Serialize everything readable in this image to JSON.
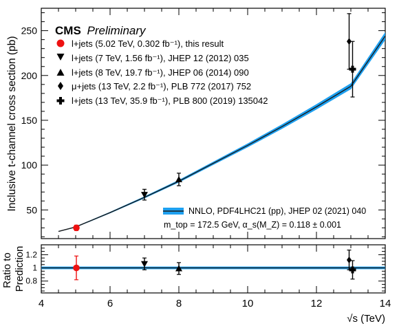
{
  "header": {
    "brand": "CMS",
    "status": "Preliminary"
  },
  "legend": {
    "entries": [
      {
        "label": "l+jets (5.02 TeV, 0.302 fb⁻¹), this result",
        "marker": "circle",
        "color": "#ee1111"
      },
      {
        "label": "l+jets (7 TeV, 1.56 fb⁻¹), JHEP 12 (2012) 035",
        "marker": "triangle-down",
        "color": "#000000"
      },
      {
        "label": "l+jets (8 TeV, 19.7 fb⁻¹), JHEP 06 (2014) 090",
        "marker": "triangle-up",
        "color": "#000000"
      },
      {
        "label": "μ+jets (13 TeV, 2.2 fb⁻¹), PLB 772 (2017) 752",
        "marker": "diamond",
        "color": "#000000"
      },
      {
        "label": "l+jets (13 TeV, 35.9 fb⁻¹), PLB 800 (2019) 135042",
        "marker": "cross",
        "color": "#000000"
      }
    ],
    "band_label": "NNLO, PDF4LHC21 (pp), JHEP 02 (2021) 040",
    "params_label": "m_top = 172.5 GeV, α_s(M_Z) = 0.118 ± 0.001"
  },
  "colors": {
    "band": "#1ea0f0",
    "line": "#1a1a1a",
    "signal": "#ee1111"
  },
  "chart_data": {
    "type": "scatter",
    "xlabel": "√s (TeV)",
    "ylabel_top": "Inclusive t-channel cross section (pb)",
    "ylabel_bottom": "Ratio to Prediction",
    "xlim": [
      4,
      14
    ],
    "ylim_top": [
      18,
      275
    ],
    "ylim_bottom": [
      0.62,
      1.35
    ],
    "xticks": [
      4,
      6,
      8,
      10,
      12,
      14
    ],
    "yticks_top": [
      50,
      100,
      150,
      200,
      250
    ],
    "yticks_bottom": [
      0.8,
      1,
      1.2
    ],
    "prediction": {
      "x": [
        4.5,
        5,
        6,
        7,
        8,
        9,
        10,
        11,
        12,
        13,
        14
      ],
      "y": [
        26,
        31,
        47,
        64,
        82,
        102,
        122,
        143,
        165,
        188,
        244
      ],
      "band_halfwidth_rel": 0.018
    },
    "measurements": [
      {
        "name": "l+jets (5.02 TeV)",
        "x": 5.02,
        "y": 30,
        "err": 3,
        "ratio": 1.0,
        "ratio_err": 0.18
      },
      {
        "name": "l+jets (7 TeV)",
        "x": 7.0,
        "y": 67,
        "err": 6,
        "ratio": 1.06,
        "ratio_err": 0.09
      },
      {
        "name": "l+jets (8 TeV)",
        "x": 8.0,
        "y": 84,
        "err": 7,
        "ratio": 0.99,
        "ratio_err": 0.09
      },
      {
        "name": "μ+jets (13 TeV, 2.2 fb⁻¹)",
        "x": 12.95,
        "y": 238,
        "err": 31,
        "ratio": 1.12,
        "ratio_err": 0.15
      },
      {
        "name": "l+jets (13 TeV, 35.9 fb⁻¹)",
        "x": 13.05,
        "y": 207,
        "err": 31,
        "ratio": 0.97,
        "ratio_err": 0.14
      }
    ]
  }
}
